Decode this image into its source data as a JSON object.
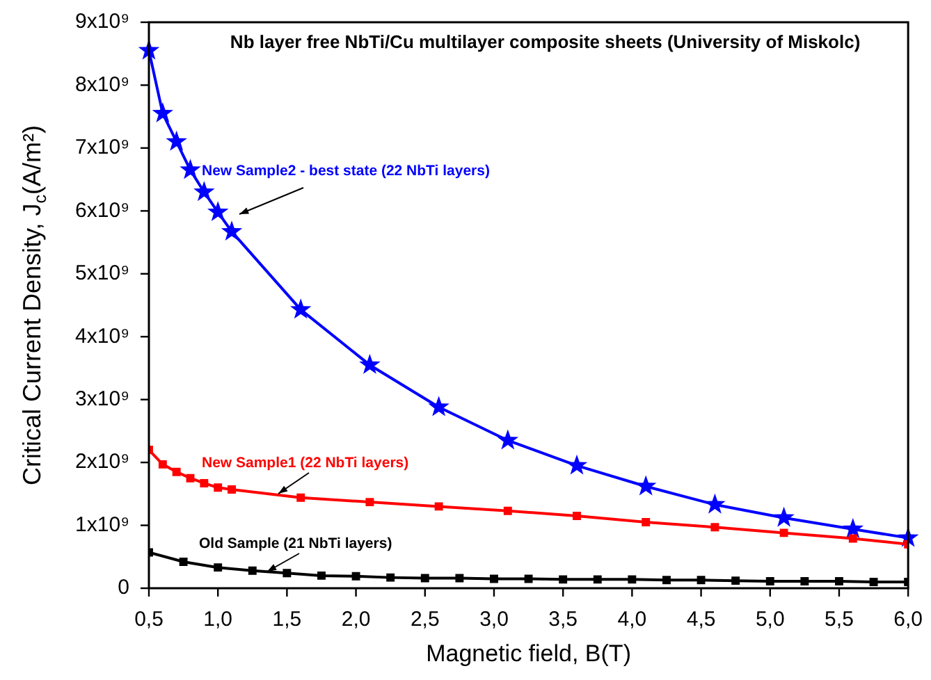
{
  "chart_data": {
    "type": "line",
    "title": "Nb layer free NbTi/Cu multilayer composite sheets (University of Miskolc)",
    "xlabel": "Magnetic field, B(T)",
    "ylabel": "Critical Current Density, J$_{c}$(A/m²)",
    "xlim": [
      0.5,
      6.0
    ],
    "xticks": [
      {
        "value": 0.5,
        "label": "0,5"
      },
      {
        "value": 1.0,
        "label": "1,0"
      },
      {
        "value": 1.5,
        "label": "1,5"
      },
      {
        "value": 2.0,
        "label": "2,0"
      },
      {
        "value": 2.5,
        "label": "2,5"
      },
      {
        "value": 3.0,
        "label": "3,0"
      },
      {
        "value": 3.5,
        "label": "3,5"
      },
      {
        "value": 4.0,
        "label": "4,0"
      },
      {
        "value": 4.5,
        "label": "4,5"
      },
      {
        "value": 5.0,
        "label": "5,0"
      },
      {
        "value": 5.5,
        "label": "5,5"
      },
      {
        "value": 6.0,
        "label": "6,0"
      }
    ],
    "ylim": [
      0,
      9000000000
    ],
    "yticks": [
      0,
      {
        "value": 1000000000,
        "label": "1x10⁹"
      },
      {
        "value": 2000000000,
        "label": "2x10⁹"
      },
      {
        "value": 3000000000,
        "label": "3x10⁹"
      },
      {
        "value": 4000000000,
        "label": "4x10⁹"
      },
      {
        "value": 5000000000,
        "label": "5x10⁹"
      },
      {
        "value": 6000000000,
        "label": "6x10⁹"
      },
      {
        "value": 7000000000,
        "label": "7x10⁹"
      },
      {
        "value": 8000000000,
        "label": "8x10⁹"
      },
      {
        "value": 9000000000,
        "label": "9x10⁹"
      }
    ],
    "grid": false,
    "legend": false,
    "series": [
      {
        "name": "New Sample2 - best state (22 NbTi layers)",
        "color": "#0000ff",
        "marker": "star",
        "x": [
          0.5,
          0.6,
          0.7,
          0.8,
          0.9,
          1.0,
          1.1,
          1.6,
          2.1,
          2.6,
          3.1,
          3.6,
          4.1,
          4.6,
          5.1,
          5.6,
          6.0
        ],
        "values": [
          8550000000,
          7550000000,
          7100000000,
          6650000000,
          6300000000,
          5980000000,
          5670000000,
          4430000000,
          3550000000,
          2880000000,
          2350000000,
          1950000000,
          1620000000,
          1330000000,
          1120000000,
          940000000,
          800000000
        ]
      },
      {
        "name": "New Sample1 (22 NbTi layers)",
        "color": "#ff0000",
        "marker": "square",
        "x": [
          0.5,
          0.6,
          0.7,
          0.8,
          0.9,
          1.0,
          1.1,
          1.6,
          2.1,
          2.6,
          3.1,
          3.6,
          4.1,
          4.6,
          5.1,
          5.6,
          6.0
        ],
        "values": [
          2200000000,
          1970000000,
          1850000000,
          1750000000,
          1670000000,
          1600000000,
          1570000000,
          1440000000,
          1370000000,
          1300000000,
          1230000000,
          1150000000,
          1050000000,
          970000000,
          880000000,
          790000000,
          700000000
        ]
      },
      {
        "name": "Old Sample (21 NbTi layers)",
        "color": "#000000",
        "marker": "square",
        "x": [
          0.5,
          0.75,
          1.0,
          1.25,
          1.5,
          1.75,
          2.0,
          2.25,
          2.5,
          2.75,
          3.0,
          3.25,
          3.5,
          3.75,
          4.0,
          4.25,
          4.5,
          4.75,
          5.0,
          5.25,
          5.5,
          5.75,
          6.0
        ],
        "values": [
          570000000,
          420000000,
          330000000,
          280000000,
          240000000,
          200000000,
          190000000,
          170000000,
          160000000,
          160000000,
          150000000,
          150000000,
          140000000,
          140000000,
          140000000,
          130000000,
          130000000,
          120000000,
          110000000,
          110000000,
          110000000,
          100000000,
          100000000
        ]
      }
    ]
  }
}
